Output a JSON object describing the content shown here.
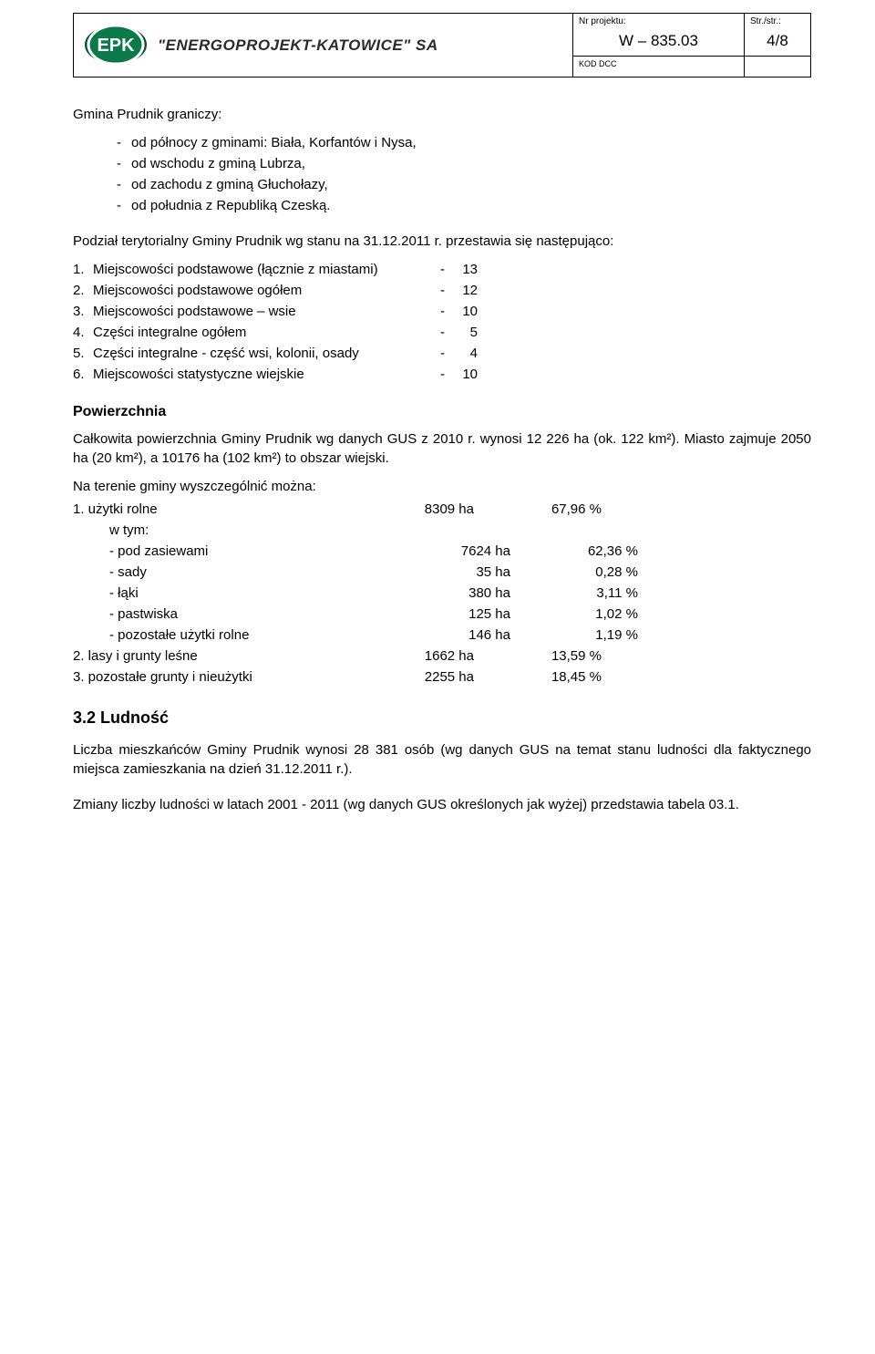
{
  "header": {
    "logo_text": "\"ENERGOPROJEKT-KATOWICE\" SA",
    "project_label": "Nr projektu:",
    "project_value": "W – 835.03",
    "page_label": "Str./str.:",
    "page_value": "4/8",
    "kod_label": "KOD DCC"
  },
  "intro": {
    "line": "Gmina Prudnik graniczy:",
    "bullets": [
      "od północy z gminami: Biała, Korfantów i Nysa,",
      "od wschodu z gminą Lubrza,",
      "od zachodu z gminą Głuchołazy,",
      "od południa z Republiką Czeską."
    ]
  },
  "podzial": {
    "line": "Podział terytorialny Gminy Prudnik wg stanu na 31.12.2011 r. przestawia się następująco:",
    "rows": [
      {
        "idx": "1.",
        "label": "Miejscowości podstawowe (łącznie z miastami)",
        "val": "13"
      },
      {
        "idx": "2.",
        "label": "Miejscowości podstawowe ogółem",
        "val": "12"
      },
      {
        "idx": "3.",
        "label": "Miejscowości podstawowe – wsie",
        "val": "10"
      },
      {
        "idx": "4.",
        "label": "Części integralne ogółem",
        "val": "5"
      },
      {
        "idx": "5.",
        "label": "Części integralne - część wsi, kolonii, osady",
        "val": "4"
      },
      {
        "idx": "6.",
        "label": "Miejscowości statystyczne wiejskie",
        "val": "10"
      }
    ]
  },
  "powierzchnia": {
    "heading": "Powierzchnia",
    "p1": "Całkowita powierzchnia Gminy Prudnik wg danych GUS z 2010 r. wynosi 12 226 ha (ok. 122 km²). Miasto zajmuje 2050 ha (20 km²), a 10176 ha (102 km²) to obszar wiejski.",
    "p2": "Na terenie gminy wyszczególnić można:",
    "land": [
      {
        "type": "num",
        "lbl": "1. użytki rolne",
        "ha": "8309 ha",
        "pct": "67,96 %"
      },
      {
        "type": "wtym",
        "lbl": "w tym:"
      },
      {
        "type": "sub",
        "lbl": "- pod zasiewami",
        "ha": "7624 ha",
        "pct": "62,36 %"
      },
      {
        "type": "sub",
        "lbl": "- sady",
        "ha": "35 ha",
        "pct": "0,28 %"
      },
      {
        "type": "sub",
        "lbl": "- łąki",
        "ha": "380 ha",
        "pct": "3,11 %"
      },
      {
        "type": "sub",
        "lbl": "- pastwiska",
        "ha": "125 ha",
        "pct": "1,02 %"
      },
      {
        "type": "sub",
        "lbl": "- pozostałe użytki rolne",
        "ha": "146 ha",
        "pct": "1,19 %"
      },
      {
        "type": "num",
        "lbl": "2. lasy i grunty leśne",
        "ha": "1662 ha",
        "pct": "13,59 %"
      },
      {
        "type": "num",
        "lbl": "3. pozostałe grunty i nieużytki",
        "ha": "2255 ha",
        "pct": "18,45 %"
      }
    ]
  },
  "ludnosc": {
    "heading": "3.2  Ludność",
    "p1": "Liczba mieszkańców Gminy Prudnik wynosi 28 381 osób (wg danych GUS na temat stanu ludności dla faktycznego miejsca zamieszkania na dzień 31.12.2011 r.).",
    "p2": "Zmiany liczby ludności w latach 2001 - 2011 (wg danych GUS określonych jak wyżej) przedstawia tabela 03.1."
  },
  "colors": {
    "logo_green": "#0a7a4a",
    "logo_stroke": "#054d2e",
    "text": "#000000",
    "bg": "#ffffff"
  }
}
